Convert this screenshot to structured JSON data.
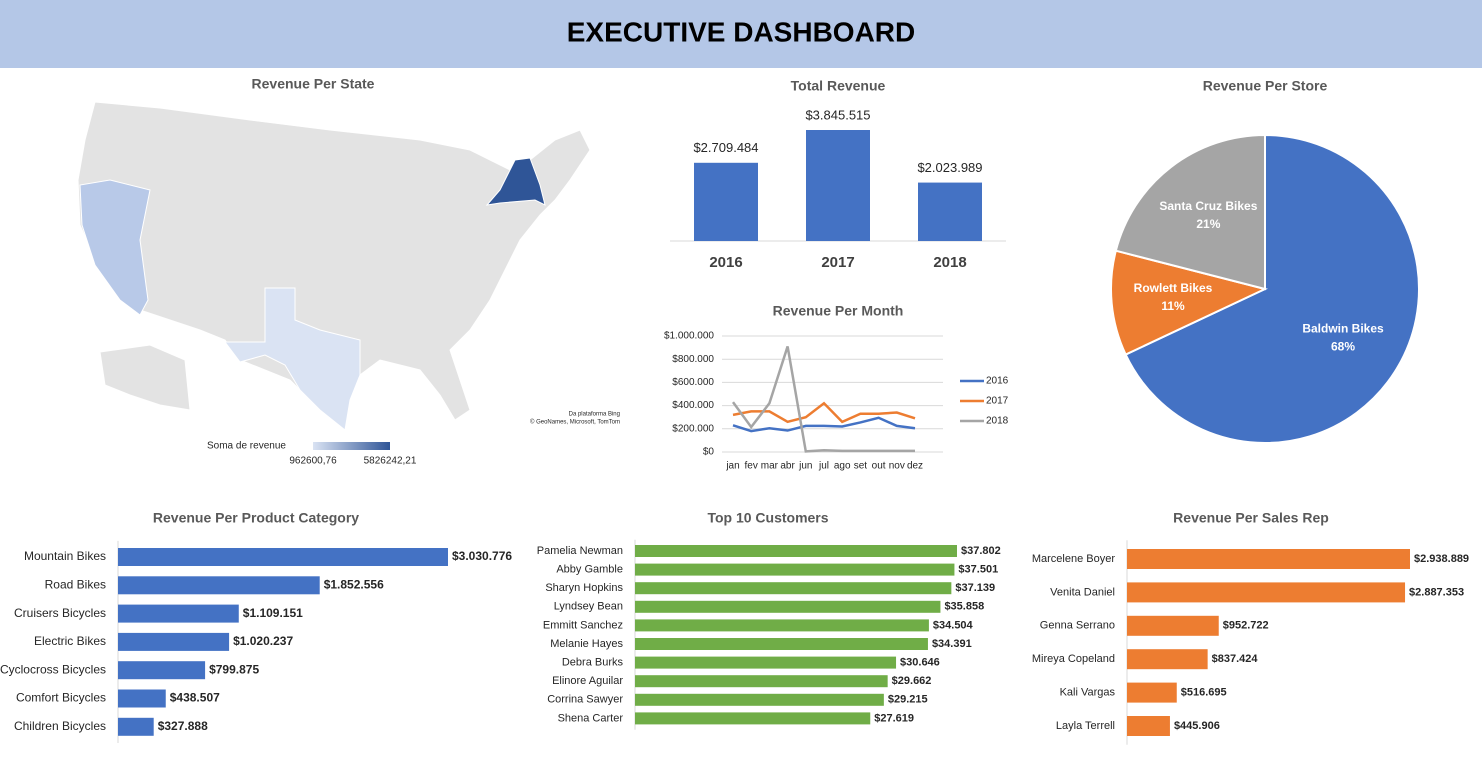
{
  "title": "EXECUTIVE DASHBOARD",
  "chart_data": [
    {
      "type": "map",
      "title": "Revenue Per State",
      "legend_title": "Soma de revenue",
      "scale": [
        {
          "value": 962600.76,
          "label": "962600,76"
        },
        {
          "value": 5826242.21,
          "label": "5826242,21"
        }
      ],
      "colors": [
        "#dae3f3",
        "#2f5597"
      ],
      "attribution": [
        "Da plataforma Bing",
        "© GeoNames, Microsoft, TomTom"
      ]
    },
    {
      "type": "bar",
      "title": "Total Revenue",
      "categories": [
        "2016",
        "2017",
        "2018"
      ],
      "values": [
        2709484,
        3845515,
        2023989
      ],
      "value_labels": [
        "$2.709.484",
        "$3.845.515",
        "$2.023.989"
      ],
      "color": "#4472c4"
    },
    {
      "type": "line",
      "title": "Revenue Per Month",
      "categories": [
        "jan",
        "fev",
        "mar",
        "abr",
        "jun",
        "jul",
        "ago",
        "set",
        "out",
        "nov",
        "dez"
      ],
      "series": [
        {
          "name": "2016",
          "color": "#4472c4",
          "values": [
            230000,
            180000,
            205000,
            185000,
            225000,
            225000,
            220000,
            255000,
            295000,
            225000,
            205000
          ]
        },
        {
          "name": "2017",
          "color": "#ed7d31",
          "values": [
            320000,
            350000,
            350000,
            260000,
            300000,
            420000,
            260000,
            330000,
            330000,
            340000,
            290000
          ]
        },
        {
          "name": "2018",
          "color": "#a5a5a5",
          "values": [
            430000,
            215000,
            420000,
            910000,
            5000,
            15000,
            10000,
            10000,
            10000,
            10000,
            10000
          ]
        }
      ],
      "ylim": [
        0,
        1000000
      ],
      "yticks": [
        {
          "value": 0,
          "label": "$0"
        },
        {
          "value": 200000,
          "label": "$200.000"
        },
        {
          "value": 400000,
          "label": "$400.000"
        },
        {
          "value": 600000,
          "label": "$600.000"
        },
        {
          "value": 800000,
          "label": "$800.000"
        },
        {
          "value": 1000000,
          "label": "$1.000.000"
        }
      ],
      "grid": true,
      "legend": "right"
    },
    {
      "type": "pie",
      "title": "Revenue Per Store",
      "categories": [
        "Baldwin Bikes",
        "Rowlett Bikes",
        "Santa Cruz Bikes"
      ],
      "values": [
        68,
        11,
        21
      ],
      "value_labels": [
        "68%",
        "11%",
        "21%"
      ],
      "colors": [
        "#4472c4",
        "#ed7d31",
        "#a5a5a5"
      ]
    },
    {
      "type": "hbar",
      "title": "Revenue Per Product Category",
      "categories": [
        "Mountain Bikes",
        "Road Bikes",
        "Cruisers Bicycles",
        "Electric Bikes",
        "Cyclocross Bicycles",
        "Comfort Bicycles",
        "Children Bicycles"
      ],
      "values": [
        3030776,
        1852556,
        1109151,
        1020237,
        799875,
        438507,
        327888
      ],
      "value_labels": [
        "$3.030.776",
        "$1.852.556",
        "$1.109.151",
        "$1.020.237",
        "$799.875",
        "$438.507",
        "$327.888"
      ],
      "color": "#4472c4"
    },
    {
      "type": "hbar",
      "title": "Top 10 Customers",
      "categories": [
        "Pamelia Newman",
        "Abby Gamble",
        "Sharyn Hopkins",
        "Lyndsey Bean",
        "Emmitt Sanchez",
        "Melanie Hayes",
        "Debra Burks",
        "Elinore Aguilar",
        "Corrina Sawyer",
        "Shena Carter"
      ],
      "values": [
        37802,
        37501,
        37139,
        35858,
        34504,
        34391,
        30646,
        29662,
        29215,
        27619
      ],
      "value_labels": [
        "$37.802",
        "$37.501",
        "$37.139",
        "$35.858",
        "$34.504",
        "$34.391",
        "$30.646",
        "$29.662",
        "$29.215",
        "$27.619"
      ],
      "color": "#70ad47"
    },
    {
      "type": "hbar",
      "title": "Revenue Per Sales Rep",
      "categories": [
        "Marcelene Boyer",
        "Venita Daniel",
        "Genna Serrano",
        "Mireya Copeland",
        "Kali Vargas",
        "Layla Terrell"
      ],
      "values": [
        2938889,
        2887353,
        952722,
        837424,
        516695,
        445906
      ],
      "value_labels": [
        "$2.938.889",
        "$2.887.353",
        "$952.722",
        "$837.424",
        "$516.695",
        "$445.906"
      ],
      "color": "#ed7d31"
    }
  ]
}
